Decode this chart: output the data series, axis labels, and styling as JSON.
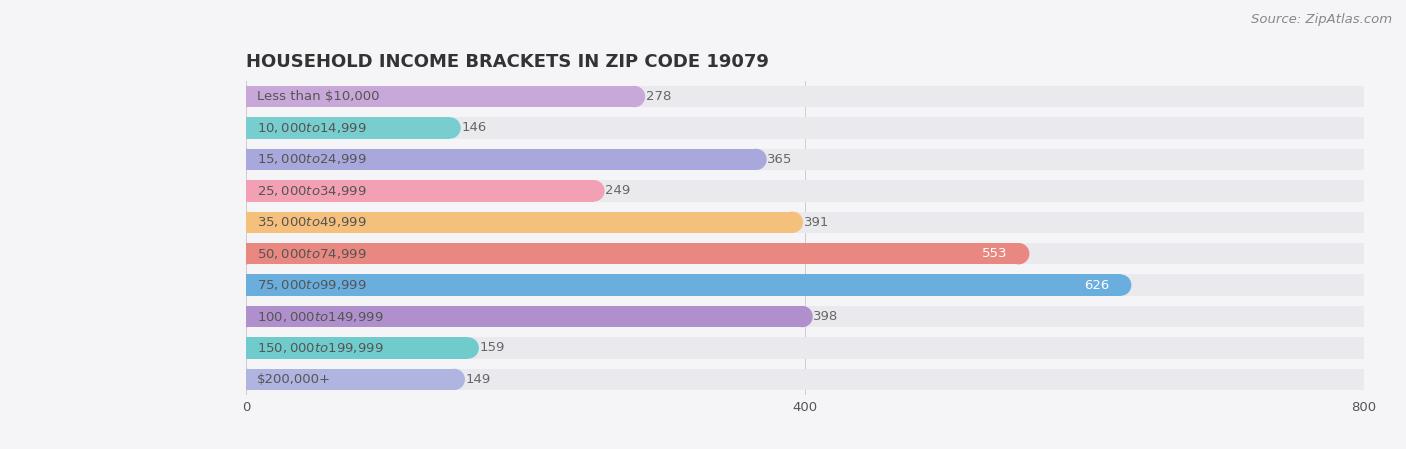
{
  "title": "HOUSEHOLD INCOME BRACKETS IN ZIP CODE 19079",
  "source": "Source: ZipAtlas.com",
  "categories": [
    "Less than $10,000",
    "$10,000 to $14,999",
    "$15,000 to $24,999",
    "$25,000 to $34,999",
    "$35,000 to $49,999",
    "$50,000 to $74,999",
    "$75,000 to $99,999",
    "$100,000 to $149,999",
    "$150,000 to $199,999",
    "$200,000+"
  ],
  "values": [
    278,
    146,
    365,
    249,
    391,
    553,
    626,
    398,
    159,
    149
  ],
  "bar_colors": [
    "#c8a8d8",
    "#78cece",
    "#a8a8dc",
    "#f4a0b4",
    "#f4c07c",
    "#e88880",
    "#6aaede",
    "#b090cc",
    "#70cccc",
    "#b0b4e0"
  ],
  "bar_bg_color": "#eaeaee",
  "background_color": "#f5f5f7",
  "xlim_max": 800,
  "xticks": [
    0,
    400,
    800
  ],
  "title_fontsize": 13,
  "label_fontsize": 9.5,
  "value_fontsize": 9.5,
  "source_fontsize": 9.5,
  "label_color": "#555555",
  "value_color_inside": "#ffffff",
  "value_color_outside": "#666666",
  "inside_threshold": 500
}
